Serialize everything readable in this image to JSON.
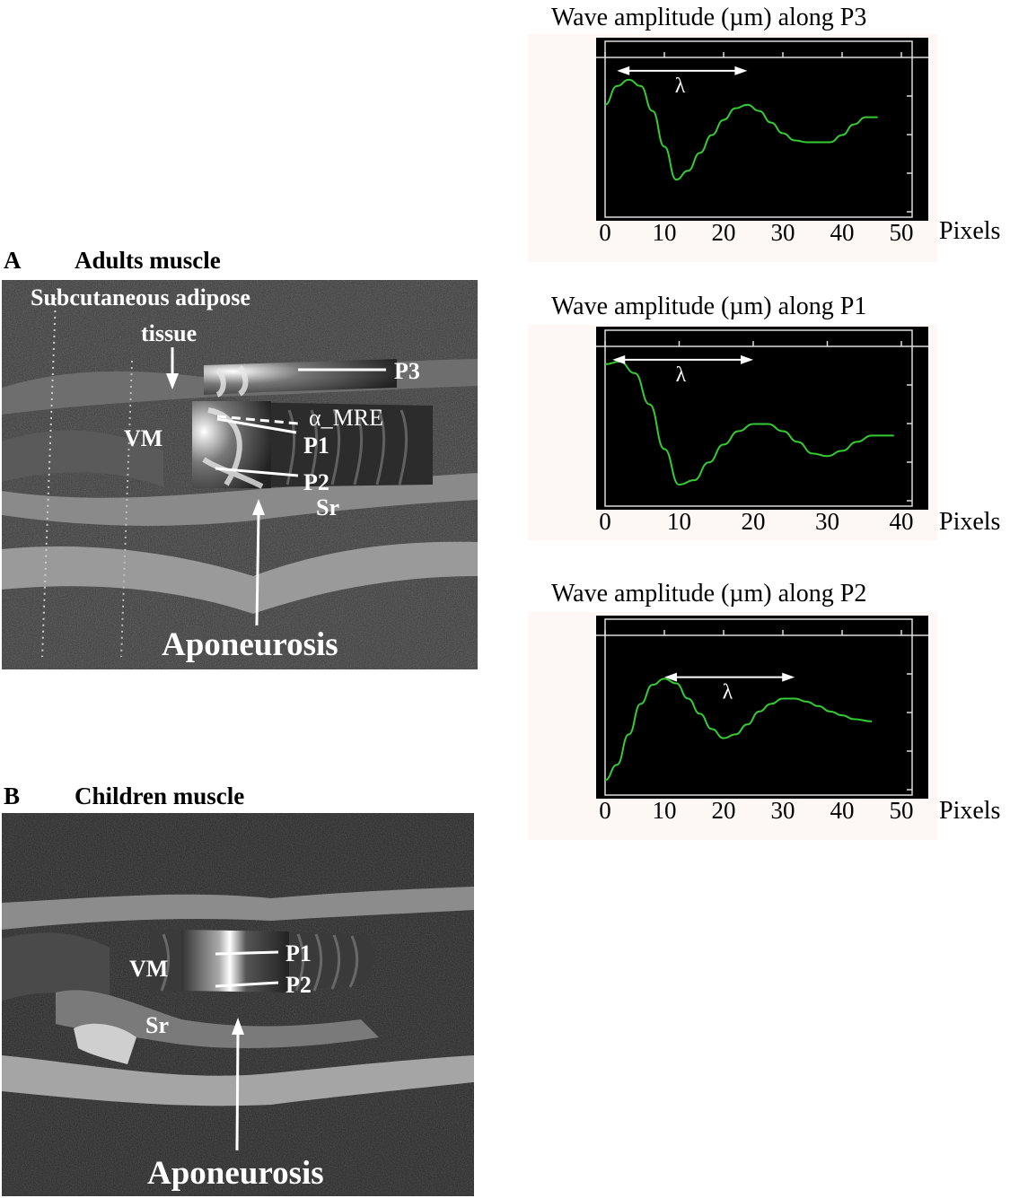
{
  "panel_a": {
    "letter": "A",
    "title": "Adults muscle",
    "labels": {
      "subcutaneous": "Subcutaneous adipose",
      "tissue": "tissue",
      "p3": "P3",
      "alpha": "α_MRE",
      "vm": "VM",
      "p1": "P1",
      "p2": "P2",
      "sr": "Sr",
      "aponeurosis": "Aponeurosis"
    }
  },
  "panel_b": {
    "letter": "B",
    "title": "Children muscle",
    "labels": {
      "vm": "VM",
      "p1": "P1",
      "p2": "P2",
      "sr": "Sr",
      "aponeurosis": "Aponeurosis"
    }
  },
  "chart_data": [
    {
      "type": "line",
      "title": "Wave amplitude (µm) along P3",
      "xlabel": "Pixels",
      "xlim": [
        0,
        50
      ],
      "xticks": [
        "0",
        "10",
        "20",
        "30",
        "40",
        "50"
      ],
      "annotation": "λ",
      "line_color": "#33cc33",
      "series": [
        {
          "x": [
            0,
            2,
            4,
            6,
            8,
            10,
            12,
            14,
            16,
            18,
            20,
            22,
            24,
            26,
            28,
            30,
            32,
            34,
            36,
            38,
            40,
            42,
            44,
            46
          ],
          "y": [
            0.62,
            0.83,
            0.9,
            0.83,
            0.55,
            0.15,
            -0.22,
            -0.12,
            0.08,
            0.28,
            0.45,
            0.58,
            0.62,
            0.55,
            0.42,
            0.3,
            0.22,
            0.2,
            0.2,
            0.2,
            0.28,
            0.4,
            0.48,
            0.48
          ]
        }
      ]
    },
    {
      "type": "line",
      "title": "Wave amplitude (µm) along P1",
      "xlabel": "Pixels",
      "xlim": [
        0,
        40
      ],
      "xticks": [
        "0",
        "10",
        "20",
        "30",
        "40"
      ],
      "annotation": "λ",
      "line_color": "#33cc33",
      "series": [
        {
          "x": [
            0,
            2,
            4,
            6,
            8,
            10,
            12,
            14,
            16,
            18,
            20,
            22,
            24,
            26,
            28,
            30,
            32,
            34,
            36,
            38,
            39
          ],
          "y": [
            0.95,
            0.98,
            0.85,
            0.5,
            0.0,
            -0.4,
            -0.35,
            -0.15,
            0.05,
            0.2,
            0.28,
            0.28,
            0.2,
            0.08,
            -0.05,
            -0.08,
            -0.02,
            0.08,
            0.15,
            0.15,
            0.15
          ]
        }
      ]
    },
    {
      "type": "line",
      "title": "Wave amplitude (µm) along P2",
      "xlabel": "Pixels",
      "xlim": [
        0,
        50
      ],
      "xticks": [
        "0",
        "10",
        "20",
        "30",
        "40",
        "50"
      ],
      "annotation": "λ",
      "line_color": "#33cc33",
      "series": [
        {
          "x": [
            0,
            2,
            4,
            6,
            8,
            10,
            12,
            14,
            16,
            18,
            20,
            22,
            24,
            26,
            28,
            30,
            32,
            34,
            36,
            38,
            40,
            42,
            45
          ],
          "y": [
            -0.95,
            -0.75,
            -0.35,
            0.05,
            0.3,
            0.38,
            0.32,
            0.12,
            -0.08,
            -0.28,
            -0.4,
            -0.35,
            -0.22,
            -0.05,
            0.05,
            0.12,
            0.12,
            0.08,
            0.02,
            -0.05,
            -0.1,
            -0.15,
            -0.18
          ]
        }
      ]
    }
  ]
}
